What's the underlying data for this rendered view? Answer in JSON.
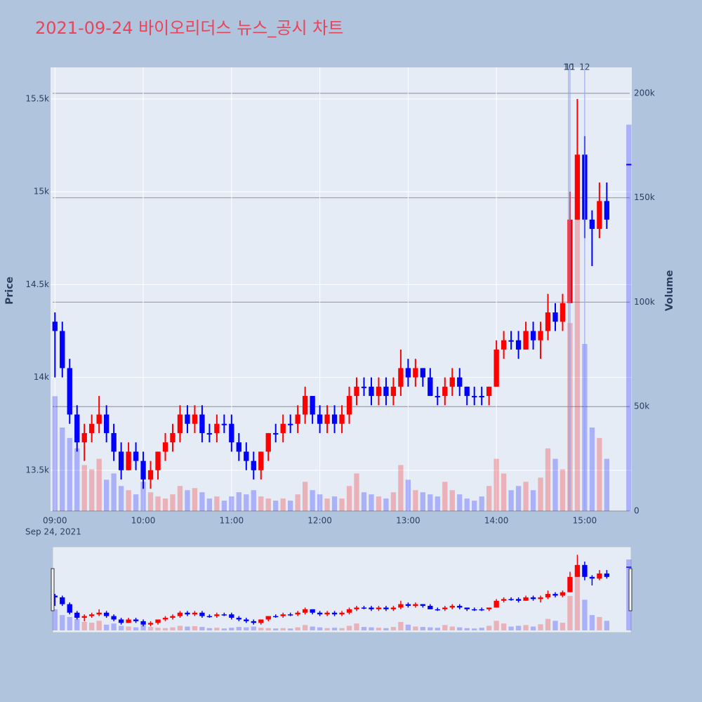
{
  "chart_data": {
    "type": "candlestick",
    "title": "2021-09-24 바이오리더스 뉴스_공시 차트",
    "ylabel": "Price",
    "y2label": "Volume",
    "x": [
      "2021-09-24 09:00",
      "2021-09-24 09:05",
      "2021-09-24 09:10",
      "2021-09-24 09:15",
      "2021-09-24 09:20",
      "2021-09-24 09:25",
      "2021-09-24 09:30",
      "2021-09-24 09:35",
      "2021-09-24 09:40",
      "2021-09-24 09:45",
      "2021-09-24 09:50",
      "2021-09-24 09:55",
      "2021-09-24 10:00",
      "2021-09-24 10:05",
      "2021-09-24 10:10",
      "2021-09-24 10:15",
      "2021-09-24 10:20",
      "2021-09-24 10:25",
      "2021-09-24 10:30",
      "2021-09-24 10:35",
      "2021-09-24 10:40",
      "2021-09-24 10:45",
      "2021-09-24 10:50",
      "2021-09-24 10:55",
      "2021-09-24 11:00",
      "2021-09-24 11:05",
      "2021-09-24 11:10",
      "2021-09-24 11:15",
      "2021-09-24 11:20",
      "2021-09-24 11:25",
      "2021-09-24 11:30",
      "2021-09-24 11:35",
      "2021-09-24 11:40",
      "2021-09-24 11:45",
      "2021-09-24 11:50",
      "2021-09-24 11:55",
      "2021-09-24 12:00",
      "2021-09-24 12:05",
      "2021-09-24 12:10",
      "2021-09-24 12:15",
      "2021-09-24 12:20",
      "2021-09-24 12:25",
      "2021-09-24 12:30",
      "2021-09-24 12:35",
      "2021-09-24 12:40",
      "2021-09-24 12:45",
      "2021-09-24 12:50",
      "2021-09-24 12:55",
      "2021-09-24 13:00",
      "2021-09-24 13:05",
      "2021-09-24 13:10",
      "2021-09-24 13:15",
      "2021-09-24 13:20",
      "2021-09-24 13:25",
      "2021-09-24 13:30",
      "2021-09-24 13:35",
      "2021-09-24 13:40",
      "2021-09-24 13:45",
      "2021-09-24 13:50",
      "2021-09-24 13:55",
      "2021-09-24 14:00",
      "2021-09-24 14:05",
      "2021-09-24 14:10",
      "2021-09-24 14:15",
      "2021-09-24 14:20",
      "2021-09-24 14:25",
      "2021-09-24 14:30",
      "2021-09-24 14:35",
      "2021-09-24 14:40",
      "2021-09-24 14:45",
      "2021-09-24 14:50",
      "2021-09-24 14:55",
      "2021-09-24 15:00",
      "2021-09-24 15:05",
      "2021-09-24 15:10",
      "2021-09-24 15:15",
      "2021-09-24 15:30"
    ],
    "open": [
      14300,
      14250,
      14050,
      13800,
      13650,
      13700,
      13750,
      13800,
      13700,
      13600,
      13500,
      13600,
      13550,
      13450,
      13500,
      13600,
      13650,
      13700,
      13800,
      13750,
      13800,
      13700,
      13700,
      13750,
      13750,
      13650,
      13600,
      13550,
      13500,
      13600,
      13700,
      13700,
      13750,
      13750,
      13800,
      13900,
      13800,
      13750,
      13800,
      13750,
      13800,
      13900,
      13950,
      13950,
      13900,
      13950,
      13900,
      13950,
      14050,
      14000,
      14050,
      14000,
      13900,
      13900,
      13950,
      14000,
      13950,
      13900,
      13900,
      13900,
      13950,
      14150,
      14200,
      14200,
      14150,
      14250,
      14200,
      14250,
      14350,
      14300,
      14400,
      14850,
      15200,
      14850,
      14800,
      14950,
      15150
    ],
    "high": [
      14350,
      14300,
      14100,
      13850,
      13750,
      13800,
      13900,
      13850,
      13750,
      13650,
      13650,
      13650,
      13600,
      13550,
      13600,
      13700,
      13750,
      13850,
      13850,
      13850,
      13850,
      13750,
      13800,
      13800,
      13800,
      13700,
      13650,
      13600,
      13600,
      13700,
      13750,
      13800,
      13800,
      13850,
      13950,
      13900,
      13850,
      13850,
      13850,
      13850,
      13950,
      14000,
      14000,
      14000,
      14000,
      14000,
      14000,
      14150,
      14100,
      14100,
      14050,
      14050,
      13950,
      14000,
      14050,
      14050,
      13950,
      13950,
      13950,
      13950,
      14200,
      14250,
      14250,
      14250,
      14300,
      14300,
      14300,
      14450,
      14400,
      14450,
      15000,
      15500,
      15300,
      14900,
      15050,
      15050,
      15150
    ],
    "low": [
      14000,
      14000,
      13750,
      13600,
      13550,
      13650,
      13700,
      13650,
      13550,
      13450,
      13500,
      13500,
      13400,
      13400,
      13450,
      13550,
      13600,
      13650,
      13700,
      13700,
      13650,
      13650,
      13650,
      13700,
      13600,
      13550,
      13500,
      13450,
      13450,
      13550,
      13650,
      13650,
      13700,
      13700,
      13750,
      13750,
      13700,
      13700,
      13700,
      13700,
      13750,
      13850,
      13900,
      13850,
      13850,
      13850,
      13850,
      13900,
      13950,
      13950,
      13950,
      13900,
      13850,
      13850,
      13900,
      13900,
      13850,
      13850,
      13850,
      13850,
      13950,
      14100,
      14150,
      14100,
      14150,
      14150,
      14100,
      14200,
      14250,
      14250,
      14400,
      14850,
      14750,
      14600,
      14750,
      14800,
      15150
    ],
    "close": [
      14250,
      14050,
      13800,
      13650,
      13700,
      13750,
      13800,
      13700,
      13600,
      13500,
      13600,
      13550,
      13450,
      13500,
      13600,
      13650,
      13700,
      13800,
      13750,
      13800,
      13700,
      13700,
      13750,
      13750,
      13650,
      13600,
      13550,
      13500,
      13600,
      13700,
      13700,
      13750,
      13750,
      13800,
      13900,
      13800,
      13750,
      13800,
      13750,
      13800,
      13900,
      13950,
      13950,
      13900,
      13950,
      13900,
      13950,
      14050,
      14000,
      14050,
      14000,
      13900,
      13900,
      13950,
      14000,
      13950,
      13900,
      13900,
      13900,
      13950,
      14150,
      14200,
      14200,
      14150,
      14250,
      14200,
      14250,
      14350,
      14300,
      14400,
      14850,
      15200,
      14850,
      14800,
      14950,
      14850,
      15150
    ],
    "volume": [
      55000,
      40000,
      35000,
      30000,
      22000,
      20000,
      25000,
      15000,
      18000,
      12000,
      10000,
      8000,
      14000,
      9000,
      7000,
      6000,
      8000,
      12000,
      10000,
      11000,
      9000,
      6000,
      7000,
      5000,
      7000,
      9000,
      8000,
      10000,
      7000,
      6000,
      5000,
      6000,
      5000,
      8000,
      14000,
      10000,
      8000,
      6000,
      7000,
      6000,
      12000,
      18000,
      9000,
      8000,
      7000,
      6000,
      9000,
      22000,
      15000,
      10000,
      9000,
      8000,
      7000,
      14000,
      10000,
      8000,
      6000,
      5000,
      7000,
      12000,
      25000,
      18000,
      10000,
      12000,
      14000,
      10000,
      16000,
      30000,
      25000,
      20000,
      90000,
      150000,
      80000,
      40000,
      35000,
      25000,
      185000
    ],
    "increasing_color": "#ff0000",
    "decreasing_color": "#0000ff",
    "xlim": [
      "2021-09-24 08:57",
      "2021-09-24 15:32"
    ],
    "xticks": [
      {
        "value": "2021-09-24 09:00",
        "label": "09:00"
      },
      {
        "value": "2021-09-24 10:00",
        "label": "10:00"
      },
      {
        "value": "2021-09-24 11:00",
        "label": "11:00"
      },
      {
        "value": "2021-09-24 12:00",
        "label": "12:00"
      },
      {
        "value": "2021-09-24 13:00",
        "label": "13:00"
      },
      {
        "value": "2021-09-24 14:00",
        "label": "14:00"
      },
      {
        "value": "2021-09-24 15:00",
        "label": "15:00"
      }
    ],
    "x_date_label": "Sep 24, 2021",
    "ylim": [
      13280,
      15670
    ],
    "yticks": [
      {
        "value": 13500,
        "label": "13.5k"
      },
      {
        "value": 14000,
        "label": "14k"
      },
      {
        "value": 14500,
        "label": "14.5k"
      },
      {
        "value": 15000,
        "label": "15k"
      },
      {
        "value": 15500,
        "label": "15.5k"
      }
    ],
    "y2lim": [
      0,
      212400
    ],
    "y2ticks": [
      0,
      {
        "value": 50000,
        "label": "50k"
      },
      {
        "value": 100000,
        "label": "100k"
      },
      {
        "value": 150000,
        "label": "150k"
      },
      {
        "value": 200000,
        "label": "200k"
      }
    ],
    "annotations": [
      {
        "x": "2021-09-24 14:49",
        "text": "10"
      },
      {
        "x": "2021-09-24 14:50",
        "text": "11"
      },
      {
        "x": "2021-09-24 15:00",
        "text": "12"
      }
    ]
  }
}
